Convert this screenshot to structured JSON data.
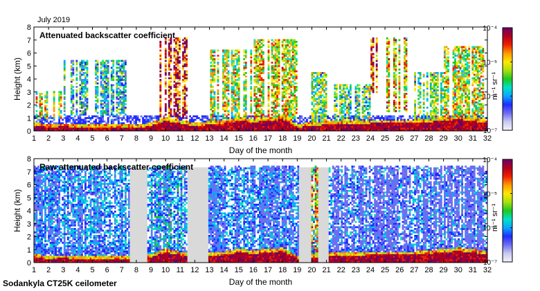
{
  "header": {
    "period_label": "July 2019"
  },
  "footer": {
    "instrument_label": "Sodankyla CT25K ceilometer"
  },
  "colors": {
    "background": "#ffffff",
    "axes": "#000000",
    "missing_data": "#d9d9d9",
    "colormap": [
      "#f4f4ff",
      "#c8c8f0",
      "#6e6ef0",
      "#1f2bff",
      "#0aa6ff",
      "#00e0c8",
      "#1ec81e",
      "#a8e010",
      "#ffe800",
      "#ff9a00",
      "#f02000",
      "#b00020",
      "#6a006a"
    ]
  },
  "chart_data": [
    {
      "type": "heatmap",
      "title": "Attenuated backscatter coefficient",
      "xlabel": "Day of the month",
      "ylabel": "Height (km)",
      "xlim": [
        1,
        32
      ],
      "ylim": [
        0,
        8
      ],
      "xticks": [
        "1",
        "2",
        "3",
        "4",
        "5",
        "6",
        "7",
        "8",
        "9",
        "10",
        "11",
        "12",
        "13",
        "14",
        "15",
        "16",
        "17",
        "18",
        "19",
        "20",
        "21",
        "22",
        "23",
        "24",
        "25",
        "26",
        "27",
        "28",
        "29",
        "30",
        "31",
        "32"
      ],
      "yticks": [
        "0",
        "1",
        "2",
        "3",
        "4",
        "5",
        "6",
        "7",
        "8"
      ],
      "colorbar": {
        "scale": "log",
        "label": "m⁻¹ sr⁻¹",
        "ticks": [
          "10⁻⁴",
          "10⁻⁵",
          "10⁻⁶",
          "10⁻⁷"
        ],
        "range": [
          1e-07,
          0.0001
        ]
      },
      "profile": {
        "missing": [],
        "boundary_layer": [
          [
            1,
            0.4
          ],
          [
            2,
            0.3
          ],
          [
            3,
            0.35
          ],
          [
            4,
            0.3
          ],
          [
            5,
            0.3
          ],
          [
            6,
            0.25
          ],
          [
            7,
            0.3
          ],
          [
            7.6,
            0.3
          ],
          [
            8,
            0.2
          ],
          [
            9,
            0.4
          ],
          [
            10,
            0.8
          ],
          [
            11,
            0.6
          ],
          [
            12,
            0.4
          ],
          [
            13,
            0.5
          ],
          [
            14,
            0.6
          ],
          [
            15,
            0.8
          ],
          [
            16,
            0.7
          ],
          [
            17,
            0.8
          ],
          [
            18,
            0.9
          ],
          [
            19,
            0.3
          ],
          [
            20,
            0.4
          ],
          [
            21,
            0.5
          ],
          [
            22,
            0.5
          ],
          [
            23,
            0.5
          ],
          [
            24,
            0.6
          ],
          [
            25,
            0.6
          ],
          [
            26,
            0.6
          ],
          [
            27,
            0.6
          ],
          [
            28,
            0.7
          ],
          [
            29,
            0.8
          ],
          [
            30,
            0.9
          ],
          [
            31,
            0.8
          ],
          [
            32,
            0.6
          ]
        ],
        "cloud_bands": [
          {
            "from": 1,
            "to": 3,
            "base": 1.0,
            "top": 3.0,
            "level": 5.8
          },
          {
            "from": 3,
            "to": 7.6,
            "base": 1.2,
            "top": 5.5,
            "level": 5.2
          },
          {
            "from": 8.7,
            "to": 11.5,
            "base": 1.0,
            "top": 7.2,
            "level": 6.6
          },
          {
            "from": 13,
            "to": 16,
            "base": 0.6,
            "top": 6.2,
            "level": 5.8
          },
          {
            "from": 16,
            "to": 19,
            "base": 0.8,
            "top": 7.0,
            "level": 5.9
          },
          {
            "from": 20,
            "to": 21,
            "base": 0.6,
            "top": 4.5,
            "level": 5.6
          },
          {
            "from": 21.5,
            "to": 24,
            "base": 0.6,
            "top": 3.6,
            "level": 5.5
          },
          {
            "from": 24,
            "to": 24.5,
            "base": 3.0,
            "top": 7.2,
            "level": 6.5
          },
          {
            "from": 25,
            "to": 26.5,
            "base": 1.5,
            "top": 7.2,
            "level": 6.0
          },
          {
            "from": 27,
            "to": 29,
            "base": 0.8,
            "top": 4.5,
            "level": 5.6
          },
          {
            "from": 29,
            "to": 31.8,
            "base": 0.6,
            "top": 6.5,
            "level": 5.8
          }
        ],
        "noise_top": 7.4
      }
    },
    {
      "type": "heatmap",
      "title": "Raw attenuated backscatter coefficient",
      "xlabel": "Day of the month",
      "ylabel": "Height (km)",
      "xlim": [
        1,
        32
      ],
      "ylim": [
        0,
        8
      ],
      "xticks": [
        "1",
        "2",
        "3",
        "4",
        "5",
        "6",
        "7",
        "8",
        "9",
        "10",
        "11",
        "12",
        "13",
        "14",
        "15",
        "16",
        "17",
        "18",
        "19",
        "20",
        "21",
        "22",
        "23",
        "24",
        "25",
        "26",
        "27",
        "28",
        "29",
        "30",
        "31",
        "32"
      ],
      "yticks": [
        "0",
        "1",
        "2",
        "3",
        "4",
        "5",
        "6",
        "7",
        "8"
      ],
      "colorbar": {
        "scale": "log",
        "label": "m⁻¹ sr⁻¹",
        "ticks": [
          "10⁻⁴",
          "10⁻⁵",
          "10⁻⁶",
          "10⁻⁷"
        ],
        "range": [
          1e-07,
          0.0001
        ]
      },
      "profile": {
        "missing": [
          [
            7.6,
            8.7
          ],
          [
            11.5,
            12.9
          ],
          [
            19.1,
            19.9
          ],
          [
            20.4,
            21.1
          ]
        ],
        "boundary_layer": [
          [
            1,
            0.4
          ],
          [
            2,
            0.3
          ],
          [
            3,
            0.35
          ],
          [
            4,
            0.3
          ],
          [
            5,
            0.3
          ],
          [
            6,
            0.25
          ],
          [
            7,
            0.3
          ],
          [
            7.6,
            0.3
          ],
          [
            8,
            0.2
          ],
          [
            9,
            0.4
          ],
          [
            10,
            0.8
          ],
          [
            11,
            0.6
          ],
          [
            12,
            0.4
          ],
          [
            13,
            0.5
          ],
          [
            14,
            0.6
          ],
          [
            15,
            0.8
          ],
          [
            16,
            0.7
          ],
          [
            17,
            0.8
          ],
          [
            18,
            0.9
          ],
          [
            19,
            0.3
          ],
          [
            20,
            0.4
          ],
          [
            21,
            0.5
          ],
          [
            22,
            0.5
          ],
          [
            23,
            0.5
          ],
          [
            24,
            0.6
          ],
          [
            25,
            0.6
          ],
          [
            26,
            0.6
          ],
          [
            27,
            0.6
          ],
          [
            28,
            0.7
          ],
          [
            29,
            0.8
          ],
          [
            30,
            0.9
          ],
          [
            31,
            0.8
          ],
          [
            32,
            0.6
          ]
        ],
        "cloud_bands": [
          {
            "from": 1,
            "to": 7.6,
            "base": 0.2,
            "top": 7.4,
            "level": 4.6
          },
          {
            "from": 8.7,
            "to": 11.5,
            "base": 0.5,
            "top": 7.4,
            "level": 4.8
          },
          {
            "from": 12.9,
            "to": 19.1,
            "base": 0.2,
            "top": 7.4,
            "level": 4.5
          },
          {
            "from": 19.9,
            "to": 20.4,
            "base": 0.2,
            "top": 7.4,
            "level": 6.0
          },
          {
            "from": 21.1,
            "to": 31.8,
            "base": 0.2,
            "top": 7.4,
            "level": 4.0
          }
        ],
        "noise_top": 7.4
      }
    }
  ]
}
